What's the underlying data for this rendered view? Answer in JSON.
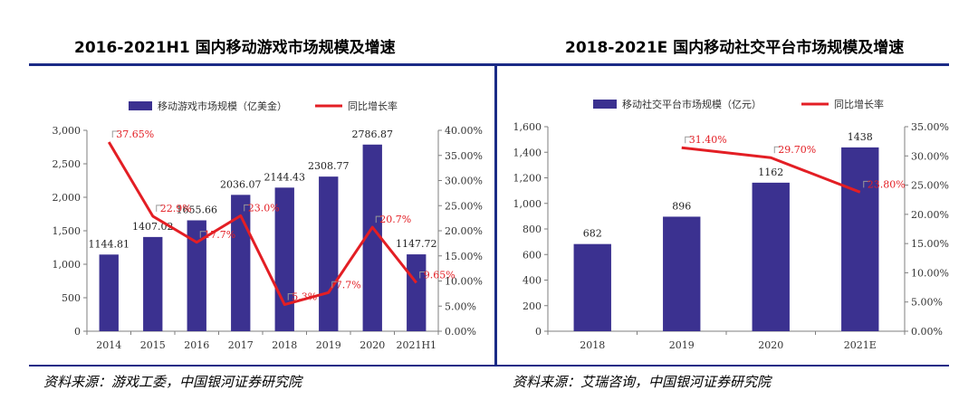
{
  "colors": {
    "bar": "#3b3190",
    "line": "#e31e24",
    "rule": "#1b2b86",
    "axis": "#7f7f7f"
  },
  "chart_data": [
    {
      "type": "bar",
      "title": "2016-2021H1 国内移动游戏市场规模及增速",
      "categories": [
        "2014",
        "2015",
        "2016",
        "2017",
        "2018",
        "2019",
        "2020",
        "2021H1"
      ],
      "series": [
        {
          "name": "移动游戏市场规模（亿美金）",
          "type": "bar",
          "axis": "left",
          "values": [
            1144.81,
            1407.02,
            1655.66,
            2036.07,
            2144.43,
            2308.77,
            2786.87,
            1147.72
          ],
          "labels": [
            "1144.81",
            "1407.02",
            "1655.66",
            "2036.07",
            "2144.43",
            "2308.77",
            "2786.87",
            "1147.72"
          ]
        },
        {
          "name": "同比增长率",
          "type": "line",
          "axis": "right",
          "values": [
            37.65,
            22.9,
            17.7,
            23.0,
            5.3,
            7.7,
            20.7,
            9.65
          ],
          "labels": [
            "37.65%",
            "22.9%",
            "17.7%",
            "23.0%",
            "5.3%",
            "7.7%",
            "20.7%",
            "9.65%"
          ]
        }
      ],
      "ylim": [
        0,
        3000
      ],
      "yticks": [
        "0",
        "500",
        "1,000",
        "1,500",
        "2,000",
        "2,500",
        "3,000"
      ],
      "y2lim": [
        0,
        40
      ],
      "y2ticks": [
        "0.00%",
        "5.00%",
        "10.00%",
        "15.00%",
        "20.00%",
        "25.00%",
        "30.00%",
        "35.00%",
        "40.00%"
      ],
      "source": "资料来源：游戏工委，中国银河证券研究院"
    },
    {
      "type": "bar",
      "title": "2018-2021E 国内移动社交平台市场规模及增速",
      "categories": [
        "2018",
        "2019",
        "2020",
        "2021E"
      ],
      "series": [
        {
          "name": "移动社交平台市场规模（亿元）",
          "type": "bar",
          "axis": "left",
          "values": [
            682,
            896,
            1162,
            1438
          ],
          "labels": [
            "682",
            "896",
            "1162",
            "1438"
          ]
        },
        {
          "name": "同比增长率",
          "type": "line",
          "axis": "right",
          "values": [
            null,
            31.4,
            29.7,
            23.8
          ],
          "labels": [
            "",
            "31.40%",
            "29.70%",
            "23.80%"
          ]
        }
      ],
      "ylim": [
        0,
        1600
      ],
      "yticks": [
        "0",
        "200",
        "400",
        "600",
        "800",
        "1,000",
        "1,200",
        "1,400",
        "1,600"
      ],
      "y2lim": [
        0,
        35
      ],
      "y2ticks": [
        "0.00%",
        "5.00%",
        "10.00%",
        "15.00%",
        "20.00%",
        "25.00%",
        "30.00%",
        "35.00%"
      ],
      "source": "资料来源：艾瑞咨询，中国银河证券研究院"
    }
  ]
}
